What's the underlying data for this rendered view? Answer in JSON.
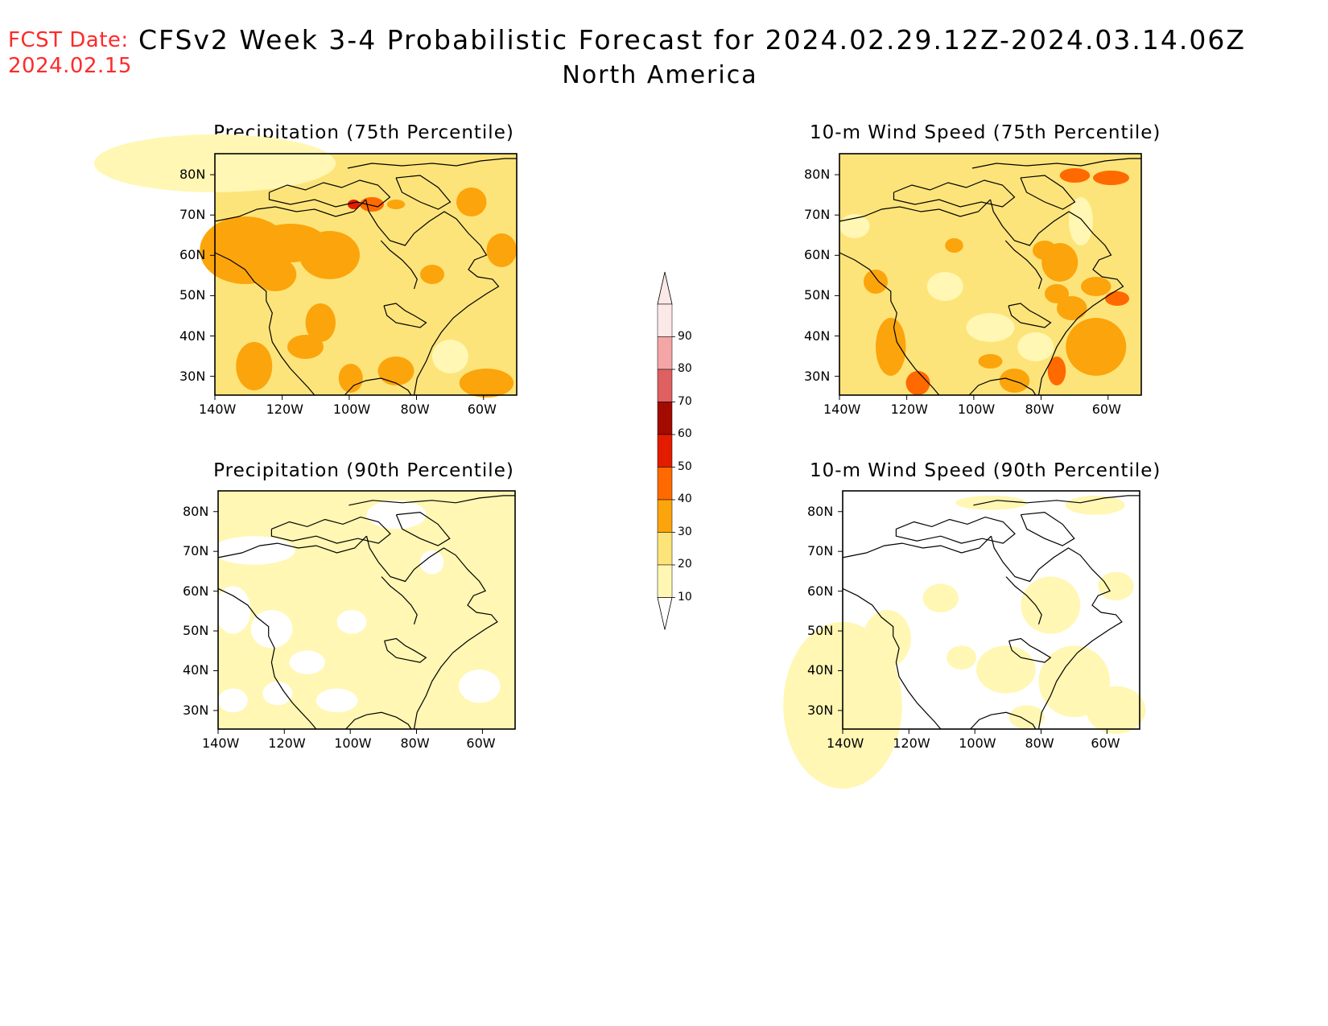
{
  "header": {
    "fcst_label": "FCST Date:",
    "fcst_date": "2024.02.15",
    "title": "CFSv2 Week 3-4 Probabilistic Forecast for 2024.02.29.12Z-2024.03.14.06Z",
    "region": "North America"
  },
  "axes": {
    "lat_ticks": [
      "80N",
      "70N",
      "60N",
      "50N",
      "40N",
      "30N"
    ],
    "lon_ticks": [
      "140W",
      "120W",
      "100W",
      "80W",
      "60W"
    ]
  },
  "colorbar": {
    "levels": [
      "10",
      "20",
      "30",
      "40",
      "50",
      "60",
      "70",
      "80",
      "90"
    ],
    "colors": [
      "#fff7b3",
      "#fde47a",
      "#fca40c",
      "#ff6a00",
      "#e31c00",
      "#a30a00",
      "#de6060",
      "#f4a6a6",
      "#fde8e8"
    ]
  },
  "panels": [
    {
      "id": "precip-75",
      "title": "Precipitation (75th Percentile)",
      "base_color": "#fde47a"
    },
    {
      "id": "wind-75",
      "title": "10-m Wind Speed (75th Percentile)",
      "base_color": "#fde47a"
    },
    {
      "id": "precip-90",
      "title": "Precipitation (90th Percentile)",
      "base_color": "#fff7b3"
    },
    {
      "id": "wind-90",
      "title": "10-m Wind Speed (90th Percentile)",
      "base_color": "#ffffff"
    }
  ]
}
